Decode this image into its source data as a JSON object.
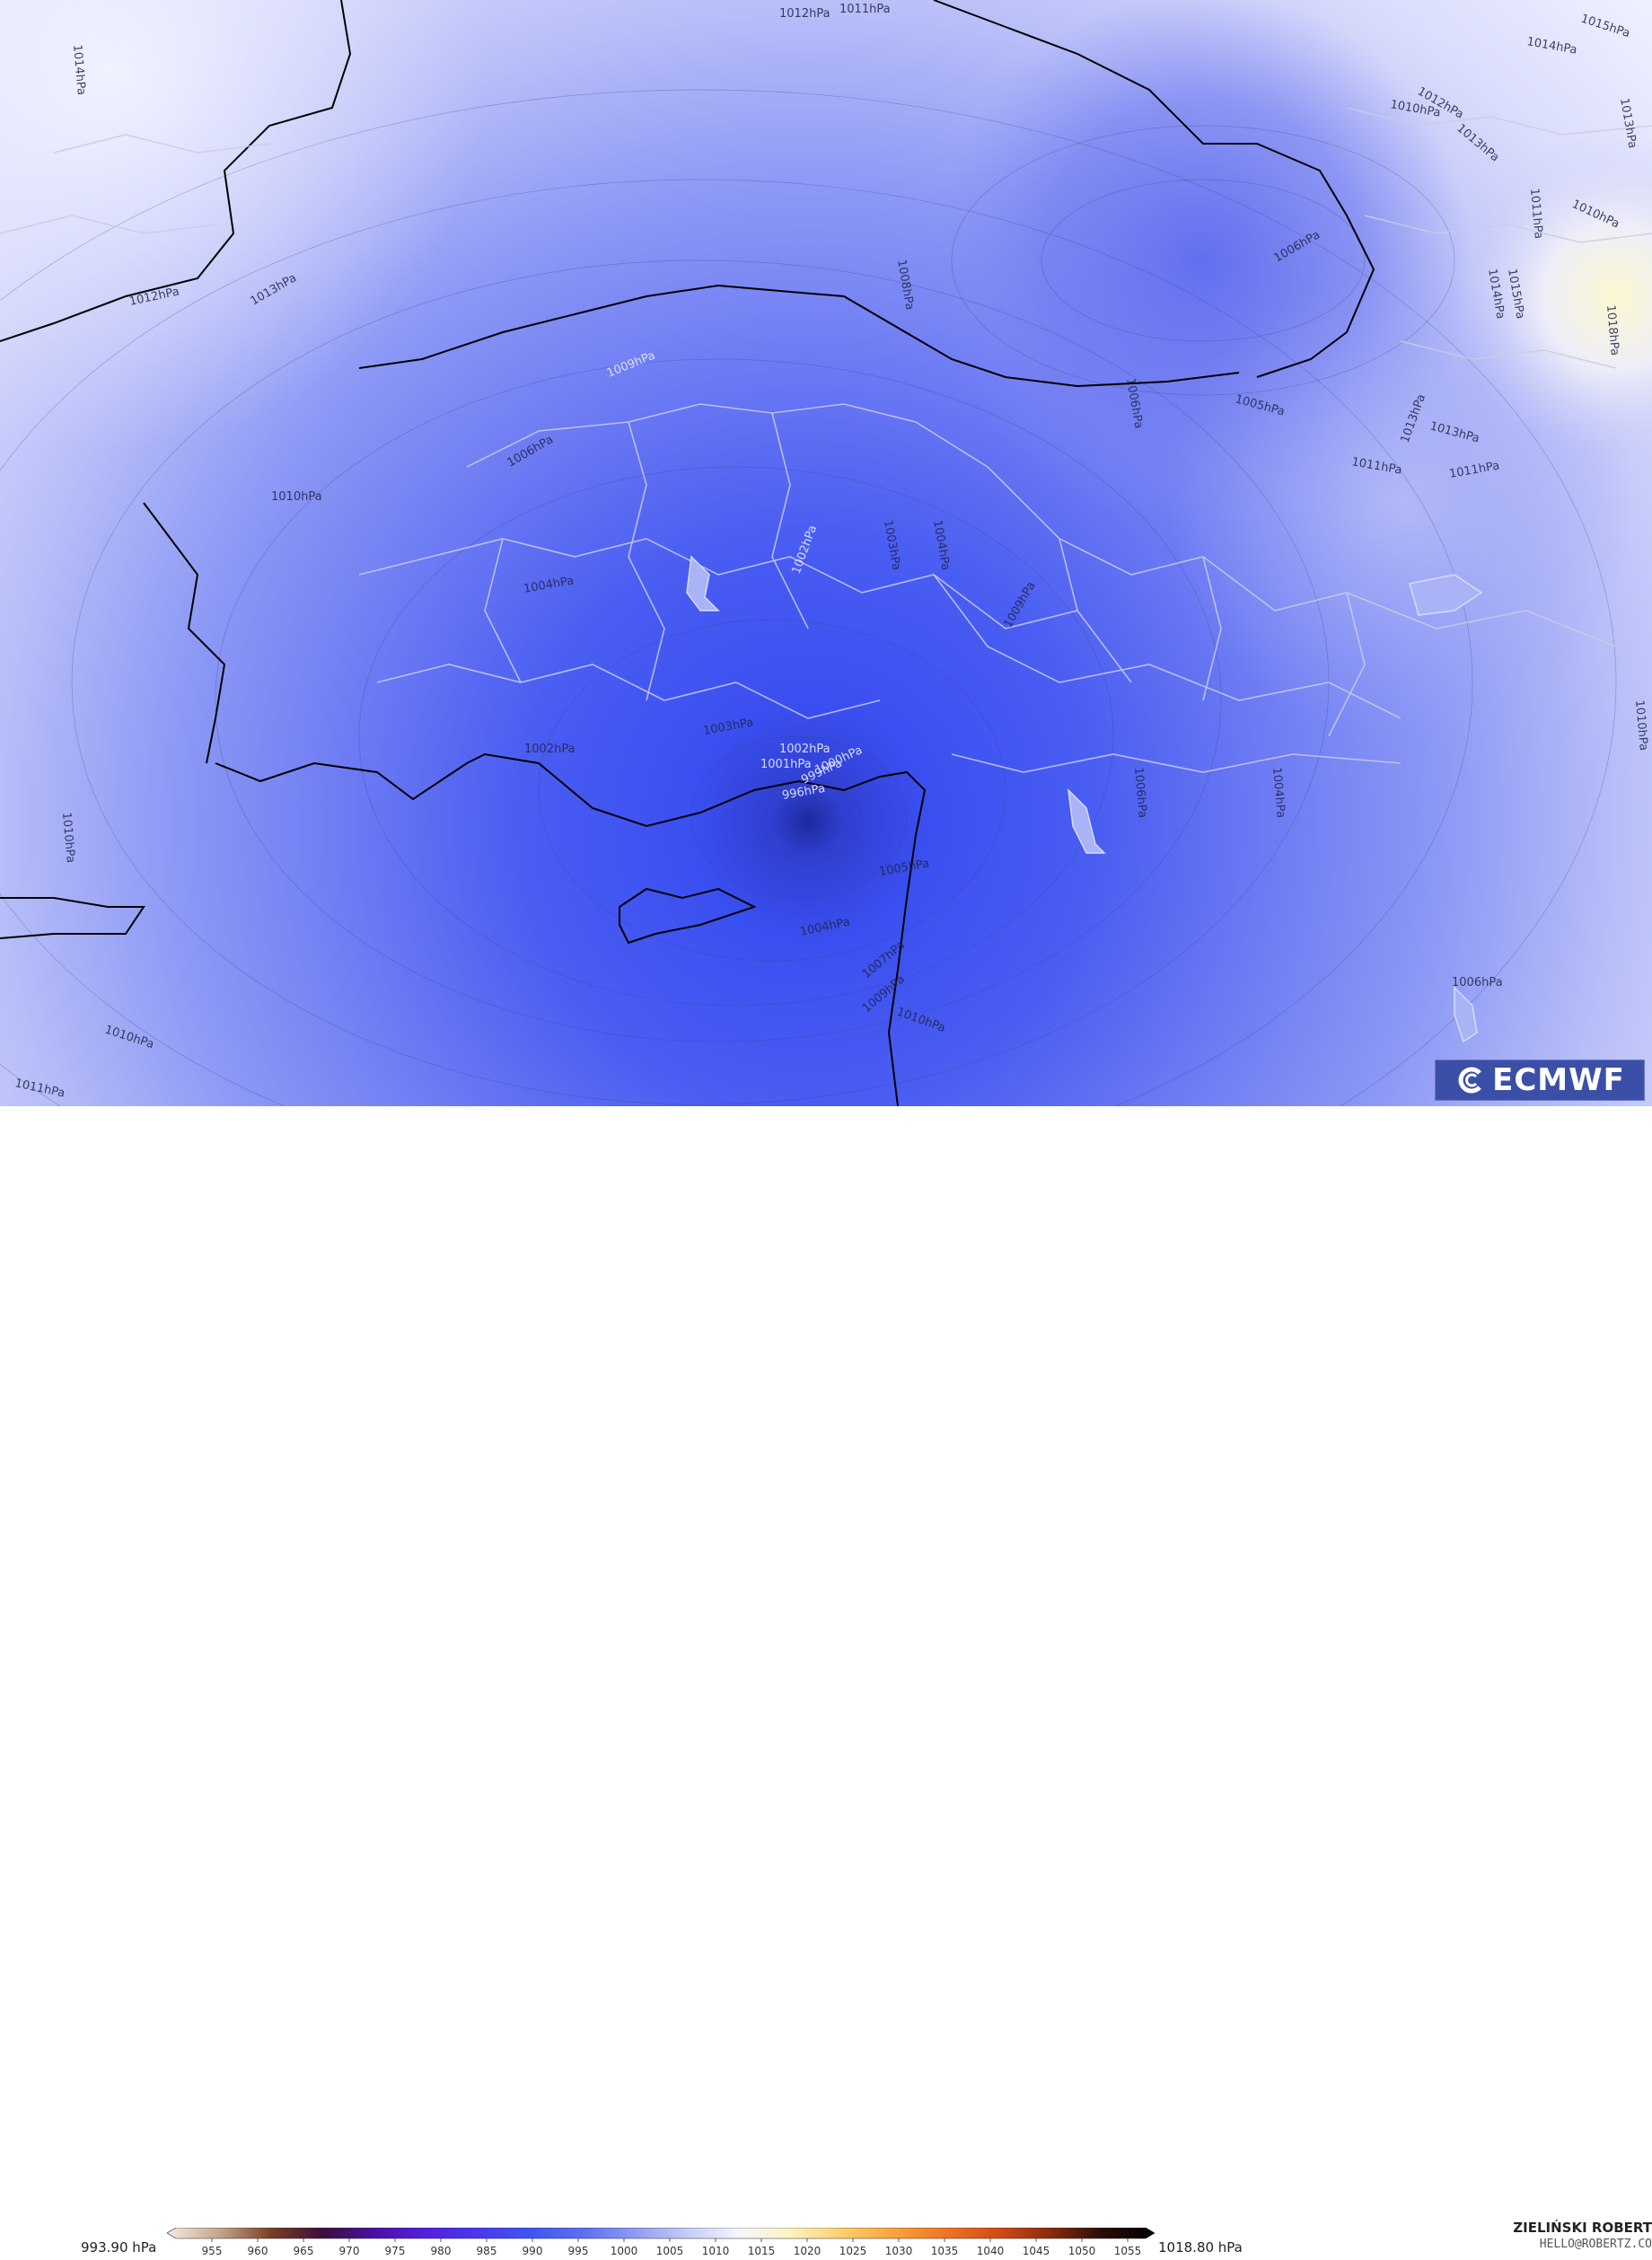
{
  "isobar_labels": [
    "1012hPa",
    "1011hPa",
    "1015hPa",
    "1014hPa",
    "1014hPa",
    "1010hPa",
    "1012hPa",
    "1013hPa",
    "1011hPa",
    "1010hPa",
    "1013hPa",
    "1006hPa",
    "1008hPa",
    "1012hPa",
    "1013hPa",
    "1015hPa",
    "1018hPa",
    "1014hPa",
    "1009hPa",
    "1006hPa",
    "1006hPa",
    "1005hPa",
    "1013hPa",
    "1013hPa",
    "1011hPa",
    "1011hPa",
    "1010hPa",
    "1004hPa",
    "1003hPa",
    "1002hPa",
    "1009hPa",
    "1004hPa",
    "1003hPa",
    "1002hPa",
    "1002hPa",
    "1001hPa",
    "1000hPa",
    "999hPa",
    "996hPa",
    "1005hPa",
    "1004hPa",
    "1004hPa",
    "1007hPa",
    "1009hPa",
    "1010hPa",
    "1006hPa",
    "1006hPa",
    "1010hPa",
    "1010hPa",
    "1011hPa",
    "1010hPa"
  ],
  "colorbar": {
    "min_label": "993.90 hPa",
    "max_label": "1018.80 hPa",
    "ticks": [
      "955",
      "960",
      "965",
      "970",
      "975",
      "980",
      "985",
      "990",
      "995",
      "1000",
      "1005",
      "1010",
      "1015",
      "1020",
      "1025",
      "1030",
      "1035",
      "1040",
      "1045",
      "1050",
      "1055"
    ],
    "stops": [
      "#f3ece2",
      "#c7a78c",
      "#7a3f24",
      "#3b0f3a",
      "#4a10a6",
      "#5520e0",
      "#4a38f0",
      "#3f55f2",
      "#5c6ff2",
      "#8f9bf4",
      "#c4cbf8",
      "#f5f6ff",
      "#fff3c0",
      "#ffce6a",
      "#fba138",
      "#f07422",
      "#d24b14",
      "#8a2a0e",
      "#2a0c06",
      "#000000"
    ]
  },
  "logo": {
    "text": "ECMWF"
  },
  "author": {
    "name": "ZIELIŃSKI ROBERT",
    "email": "HELLO@ROBERTZ.CO"
  }
}
